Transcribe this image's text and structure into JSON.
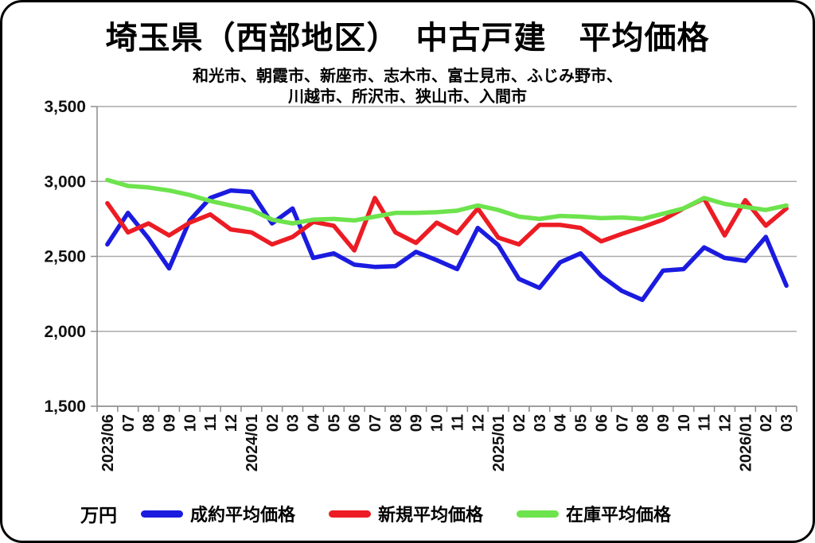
{
  "header": {
    "title": "埼玉県（西部地区）　中古戸建　平均価格",
    "subtitle_line1": "和光市、朝霞市、新座市、志木市、富士見市、ふじみ野市、",
    "subtitle_line2": "川越市、所沢市、狭山市、入間市"
  },
  "legend": {
    "unit_label": "万円",
    "items": [
      {
        "label": "成約平均価格",
        "key": "contracted-price",
        "color": "#1b1be0"
      },
      {
        "label": "新規平均価格",
        "key": "new-listing-price",
        "color": "#ec1c24"
      },
      {
        "label": "在庫平均価格",
        "key": "inventory-price",
        "color": "#6de34d"
      }
    ]
  },
  "chart_data": {
    "type": "line",
    "title": "埼玉県（西部地区）　中古戸建　平均価格",
    "subtitle": "和光市、朝霞市、新座市、志木市、富士見市、ふじみ野市、川越市、所沢市、狭山市、入間市",
    "unit": "万円",
    "ylim": [
      1500,
      3500
    ],
    "grid": true,
    "legend_position": "bottom",
    "y_ticks": {
      "values": [
        3500,
        3000,
        2500,
        2000,
        1500
      ],
      "labels": [
        "3,500",
        "3,000",
        "2,500",
        "2,000",
        "1,500"
      ]
    },
    "x_labels": [
      "2023/06",
      "07",
      "08",
      "09",
      "10",
      "11",
      "12",
      "2024/01",
      "02",
      "03",
      "04",
      "05",
      "06",
      "07",
      "08",
      "09",
      "10",
      "11",
      "12",
      "2025/01",
      "02",
      "03",
      "04",
      "05",
      "06",
      "07",
      "08",
      "09",
      "10",
      "11",
      "12",
      "2026/01",
      "02",
      "03"
    ],
    "series": [
      {
        "name": "成約平均価格",
        "key": "contracted-price",
        "color": "#1b1be0",
        "values": [
          2580,
          2790,
          2620,
          2420,
          2740,
          2890,
          2940,
          2930,
          2720,
          2820,
          2490,
          2520,
          2445,
          2430,
          2435,
          2530,
          2475,
          2415,
          2690,
          2575,
          2350,
          2290,
          2460,
          2520,
          2370,
          2270,
          2210,
          2405,
          2415,
          2560,
          2490,
          2470,
          2630,
          2305
        ]
      },
      {
        "name": "新規平均価格",
        "key": "new-listing-price",
        "color": "#ec1c24",
        "values": [
          2855,
          2660,
          2720,
          2640,
          2725,
          2780,
          2680,
          2660,
          2580,
          2630,
          2730,
          2705,
          2540,
          2890,
          2660,
          2590,
          2725,
          2655,
          2820,
          2625,
          2580,
          2710,
          2710,
          2690,
          2600,
          2650,
          2695,
          2745,
          2820,
          2885,
          2640,
          2875,
          2705,
          2820
        ]
      },
      {
        "name": "在庫平均価格",
        "key": "inventory-price",
        "color": "#6de34d",
        "values": [
          3010,
          2970,
          2960,
          2940,
          2910,
          2870,
          2840,
          2810,
          2745,
          2720,
          2745,
          2750,
          2740,
          2765,
          2790,
          2790,
          2795,
          2805,
          2840,
          2810,
          2765,
          2750,
          2770,
          2765,
          2755,
          2760,
          2750,
          2785,
          2820,
          2890,
          2850,
          2830,
          2810,
          2840
        ]
      }
    ]
  },
  "colors": {
    "grid": "#a9a9a9",
    "axis": "#8c8c8c",
    "text": "#111111",
    "background": "#ffffff",
    "border": "#000000"
  }
}
